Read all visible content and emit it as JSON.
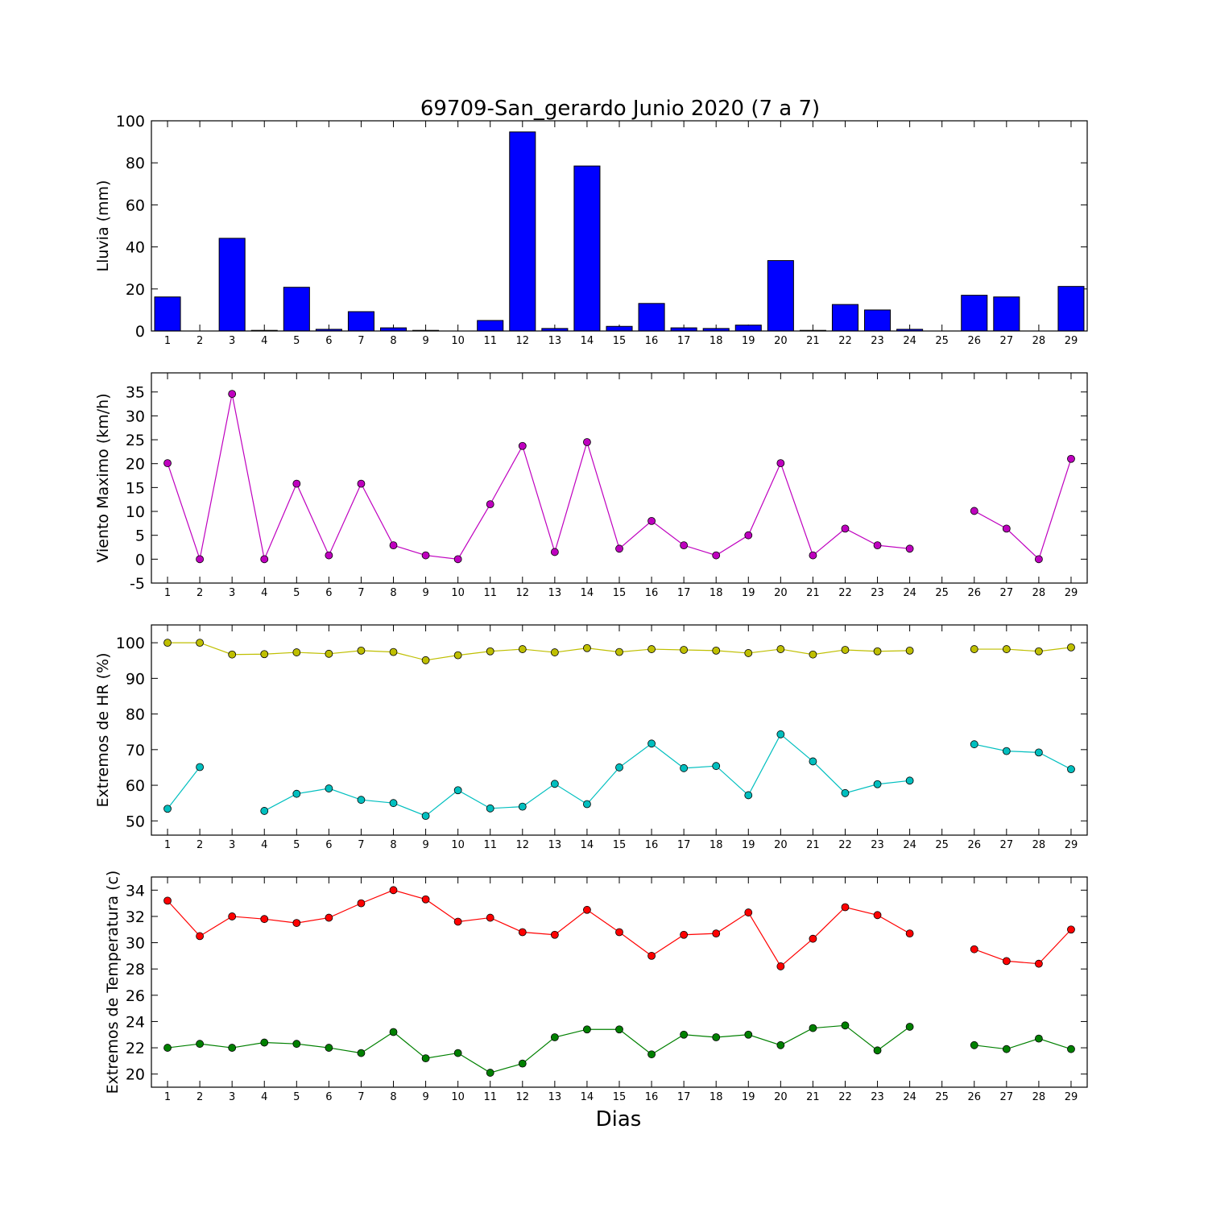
{
  "title": "69709-San_gerardo Junio 2020  (7 a 7)",
  "xlabel": "Dias",
  "colors": {
    "rain": "#0000ff",
    "wind": "#bf00bf",
    "hr_max": "#bfbf00",
    "hr_min": "#00bfbf",
    "temp_max": "#ff0000",
    "temp_min": "#008000"
  },
  "chart_data": [
    {
      "type": "bar",
      "ylabel": "Lluvia (mm)",
      "ylim": [
        0,
        100
      ],
      "yticks": [
        0,
        20,
        40,
        60,
        80,
        100
      ],
      "x": [
        1,
        2,
        3,
        4,
        5,
        6,
        7,
        8,
        9,
        10,
        11,
        12,
        13,
        14,
        15,
        16,
        17,
        18,
        19,
        20,
        21,
        22,
        23,
        24,
        25,
        26,
        27,
        28,
        29
      ],
      "series": [
        {
          "color_key": "rain",
          "values": [
            16.2,
            0,
            44.1,
            0.3,
            20.8,
            0.8,
            9.2,
            1.5,
            0.3,
            0,
            5,
            94.7,
            1.2,
            78.5,
            2.2,
            13.1,
            1.5,
            1.2,
            2.8,
            33.5,
            0.3,
            12.6,
            10,
            0.8,
            null,
            17,
            16.2,
            null,
            21.2
          ]
        }
      ]
    },
    {
      "type": "line",
      "ylabel": "Viento Maximo (km/h)",
      "ylim": [
        -5,
        39
      ],
      "yticks": [
        -5,
        0,
        5,
        10,
        15,
        20,
        25,
        30,
        35
      ],
      "x": [
        1,
        2,
        3,
        4,
        5,
        6,
        7,
        8,
        9,
        10,
        11,
        12,
        13,
        14,
        15,
        16,
        17,
        18,
        19,
        20,
        21,
        22,
        23,
        24,
        25,
        26,
        27,
        28,
        29
      ],
      "series": [
        {
          "color_key": "wind",
          "values": [
            20.1,
            0,
            34.6,
            0,
            15.8,
            0.8,
            15.8,
            2.9,
            0.8,
            0,
            11.5,
            23.7,
            1.5,
            24.5,
            2.2,
            8,
            2.9,
            0.8,
            5,
            20.1,
            0.8,
            6.4,
            2.9,
            2.2,
            null,
            10.1,
            6.4,
            0,
            21
          ]
        }
      ]
    },
    {
      "type": "line",
      "ylabel": "Extremos de HR (%)",
      "ylim": [
        46,
        105
      ],
      "yticks": [
        50,
        60,
        70,
        80,
        90,
        100
      ],
      "x": [
        1,
        2,
        3,
        4,
        5,
        6,
        7,
        8,
        9,
        10,
        11,
        12,
        13,
        14,
        15,
        16,
        17,
        18,
        19,
        20,
        21,
        22,
        23,
        24,
        25,
        26,
        27,
        28,
        29
      ],
      "series": [
        {
          "color_key": "hr_max",
          "values": [
            100,
            100,
            96.7,
            96.8,
            97.3,
            96.9,
            97.8,
            97.4,
            95.1,
            96.5,
            97.6,
            98.2,
            97.3,
            98.5,
            97.4,
            98.2,
            98,
            97.8,
            97.1,
            98.2,
            96.7,
            98,
            97.6,
            97.8,
            null,
            98.2,
            98.2,
            97.6,
            98.7
          ]
        },
        {
          "color_key": "hr_min",
          "values": [
            53.4,
            65.1,
            null,
            52.8,
            57.6,
            59.1,
            55.9,
            55,
            51.4,
            58.6,
            53.5,
            54,
            60.4,
            54.7,
            65,
            71.7,
            64.8,
            65.4,
            57.2,
            74.3,
            66.7,
            57.8,
            60.3,
            61.3,
            null,
            71.5,
            69.6,
            69.2,
            64.5
          ]
        }
      ]
    },
    {
      "type": "line",
      "ylabel": "Extremos de Temperatura (c)",
      "ylim": [
        19,
        35
      ],
      "yticks": [
        20,
        22,
        24,
        26,
        28,
        30,
        32,
        34
      ],
      "x": [
        1,
        2,
        3,
        4,
        5,
        6,
        7,
        8,
        9,
        10,
        11,
        12,
        13,
        14,
        15,
        16,
        17,
        18,
        19,
        20,
        21,
        22,
        23,
        24,
        25,
        26,
        27,
        28,
        29
      ],
      "series": [
        {
          "color_key": "temp_max",
          "values": [
            33.2,
            30.5,
            32,
            31.8,
            31.5,
            31.9,
            33,
            34,
            33.3,
            31.6,
            31.9,
            30.8,
            30.6,
            32.5,
            30.8,
            29,
            30.6,
            30.7,
            32.3,
            28.2,
            30.3,
            32.7,
            32.1,
            30.7,
            null,
            29.5,
            28.6,
            28.4,
            31
          ]
        },
        {
          "color_key": "temp_min",
          "values": [
            22,
            22.3,
            22,
            22.4,
            22.3,
            22,
            21.6,
            23.2,
            21.2,
            21.6,
            20.1,
            20.8,
            22.8,
            23.4,
            23.4,
            21.5,
            23,
            22.8,
            23,
            22.2,
            23.5,
            23.7,
            21.8,
            23.6,
            null,
            22.2,
            21.9,
            22.7,
            21.9
          ]
        }
      ]
    }
  ]
}
